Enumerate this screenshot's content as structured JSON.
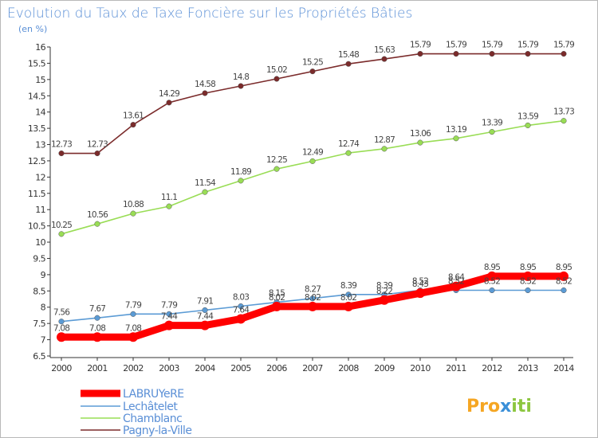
{
  "chart_data": {
    "type": "line",
    "title": "Evolution du Taux de Taxe Foncière sur les Propriétés Bâties",
    "subtitle": "(en %)",
    "x": [
      "2000",
      "2001",
      "2002",
      "2003",
      "2004",
      "2005",
      "2006",
      "2007",
      "2008",
      "2009",
      "2010",
      "2011",
      "2012",
      "2013",
      "2014"
    ],
    "ylim": [
      6.5,
      16
    ],
    "yticks": [
      "6.5",
      "7",
      "7.5",
      "8",
      "8.5",
      "9",
      "9.5",
      "10",
      "10.5",
      "11",
      "11.5",
      "12",
      "12.5",
      "13",
      "13.5",
      "14",
      "14.5",
      "15",
      "15.5",
      "16"
    ],
    "grid": false,
    "legend_position": "bottom-left",
    "series": [
      {
        "name": "LABRUYeRE",
        "color": "#ff0000",
        "values": [
          7.08,
          7.08,
          7.08,
          7.44,
          7.44,
          7.64,
          8.02,
          8.02,
          8.02,
          8.22,
          8.43,
          8.64,
          8.95,
          8.95,
          8.95
        ],
        "labels": [
          "7.08",
          "7.08",
          "7.08",
          "7.44",
          "7.44",
          "7.64",
          "8.02",
          "8.02",
          "8.02",
          "8.22",
          "8.43",
          "8.64",
          "8.95",
          "8.95",
          "8.95"
        ]
      },
      {
        "name": "Lechâtelet",
        "color": "#5b9bd5",
        "values": [
          7.56,
          7.67,
          7.79,
          7.79,
          7.91,
          8.03,
          8.15,
          8.27,
          8.39,
          8.39,
          8.52,
          8.52,
          8.52,
          8.52,
          8.52
        ],
        "labels": [
          "7.56",
          "7.67",
          "7.79",
          "7.79",
          "7.91",
          "8.03",
          "8.15",
          "8.27",
          "8.39",
          "8.39",
          "8.52",
          "8.52",
          "8.52",
          "8.52",
          "8.52"
        ]
      },
      {
        "name": "Chamblanc",
        "color": "#99dd55",
        "values": [
          10.25,
          10.56,
          10.88,
          11.1,
          11.54,
          11.89,
          12.25,
          12.49,
          12.74,
          12.87,
          13.06,
          13.19,
          13.39,
          13.59,
          13.73
        ],
        "labels": [
          "10.25",
          "10.56",
          "10.88",
          "11.1",
          "11.54",
          "11.89",
          "12.25",
          "12.49",
          "12.74",
          "12.87",
          "13.06",
          "13.19",
          "13.39",
          "13.59",
          "13.73"
        ]
      },
      {
        "name": "Pagny-la-Ville",
        "color": "#7b2b2b",
        "values": [
          12.73,
          12.73,
          13.61,
          14.29,
          14.58,
          14.8,
          15.02,
          15.25,
          15.48,
          15.63,
          15.79,
          15.79,
          15.79,
          15.79,
          15.79
        ],
        "labels": [
          "12.73",
          "12.73",
          "13.61",
          "14.29",
          "14.58",
          "14.8",
          "15.02",
          "15.25",
          "15.48",
          "15.63",
          "15.79",
          "15.79",
          "15.79",
          "15.79",
          "15.79"
        ]
      }
    ]
  },
  "logo": {
    "part1": "Pro",
    "part2": "x",
    "part3": "iti"
  }
}
